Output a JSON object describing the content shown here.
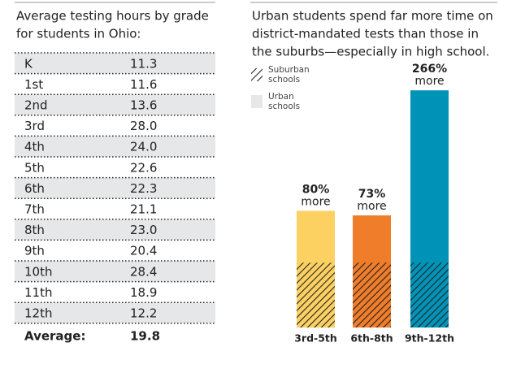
{
  "table": {
    "title": [
      "Average testing hours by grade",
      "for students in Ohio:"
    ],
    "rows": [
      [
        "K",
        "11.3"
      ],
      [
        "1st",
        "11.6"
      ],
      [
        "2nd",
        "13.6"
      ],
      [
        "3rd",
        "28.0"
      ],
      [
        "4th",
        "24.0"
      ],
      [
        "5th",
        "22.6"
      ],
      [
        "6th",
        "22.3"
      ],
      [
        "7th",
        "21.1"
      ],
      [
        "8th",
        "23.0"
      ],
      [
        "9th",
        "20.4"
      ],
      [
        "10th",
        "28.4"
      ],
      [
        "11th",
        "18.9"
      ],
      [
        "12th",
        "12.2"
      ]
    ],
    "footer": [
      "Average:",
      "19.8"
    ]
  },
  "chart_data": {
    "type": "bar",
    "title": [
      "Urban students spend far more time on",
      "district-mandated tests than those in",
      "the suburbs—especially in high school."
    ],
    "categories": [
      "3rd-5th",
      "6th-8th",
      "9th-12th"
    ],
    "series": [
      {
        "name": "Urban schools",
        "color": "#e6e7e8",
        "bar_colors": [
          "#fdd062",
          "#f07d2a",
          "#0093b8"
        ],
        "values": [
          180,
          173,
          366
        ]
      },
      {
        "name": "Suburban schools",
        "color": "#222222",
        "values": [
          100,
          100,
          100
        ]
      }
    ],
    "annotations": [
      {
        "label": "80%",
        "note": "more"
      },
      {
        "label": "73%",
        "note": "more"
      },
      {
        "label": "266%",
        "note": "more"
      }
    ],
    "ylim": [
      0,
      380
    ]
  }
}
